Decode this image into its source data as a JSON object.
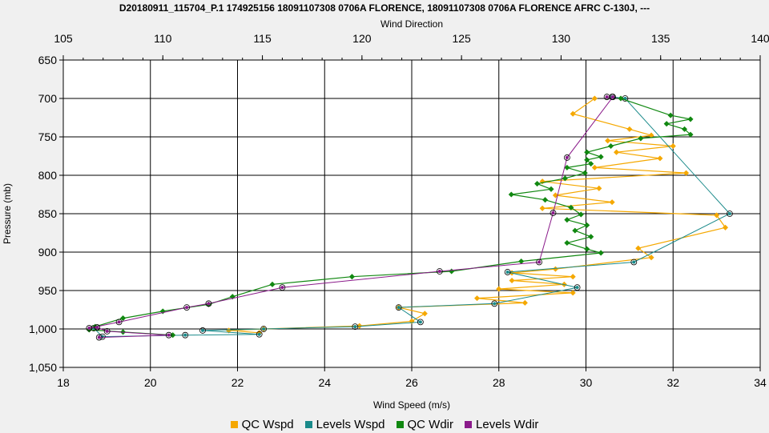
{
  "chart_data": {
    "type": "line",
    "title": "D20180911_115704_P.1 174925156 18091107308 0706A FLORENCE, 18091107308 0706A FLORENCE AFRC C-130J, ---",
    "xlabel": "Wind Speed (m/s)",
    "x2label": "Wind Direction",
    "ylabel": "Pressure (mb)",
    "xlim": [
      18,
      34
    ],
    "x2lim": [
      105,
      140
    ],
    "ylim": [
      650,
      1050
    ],
    "y_inverted": true,
    "x_ticks": [
      "18",
      "20",
      "22",
      "24",
      "26",
      "28",
      "30",
      "32",
      "34"
    ],
    "x2_ticks": [
      "105",
      "110",
      "115",
      "120",
      "125",
      "130",
      "135",
      "140"
    ],
    "y_ticks": [
      "650",
      "700",
      "750",
      "800",
      "850",
      "900",
      "950",
      "1,000",
      "1,050"
    ],
    "grid": true,
    "legend_position": "bottom",
    "series": [
      {
        "name": "QC Wspd",
        "axis": "x",
        "color": "#f5a800",
        "points": [
          [
            30.2,
            700
          ],
          [
            29.7,
            720
          ],
          [
            31.0,
            740
          ],
          [
            31.5,
            748
          ],
          [
            30.5,
            755
          ],
          [
            32.0,
            762
          ],
          [
            30.7,
            770
          ],
          [
            31.7,
            778
          ],
          [
            30.2,
            790
          ],
          [
            32.3,
            797
          ],
          [
            29.0,
            808
          ],
          [
            30.3,
            817
          ],
          [
            29.3,
            826
          ],
          [
            30.6,
            835
          ],
          [
            29.0,
            843
          ],
          [
            33.0,
            852
          ],
          [
            33.2,
            868
          ],
          [
            31.2,
            895
          ],
          [
            31.5,
            907
          ],
          [
            29.3,
            922
          ],
          [
            28.3,
            927
          ],
          [
            29.7,
            932
          ],
          [
            28.3,
            937
          ],
          [
            29.5,
            942
          ],
          [
            28.0,
            948
          ],
          [
            29.7,
            953
          ],
          [
            27.5,
            960
          ],
          [
            28.6,
            966
          ],
          [
            25.7,
            972
          ],
          [
            26.3,
            980
          ],
          [
            26.0,
            990
          ],
          [
            24.8,
            996
          ],
          [
            22.6,
            1000
          ],
          [
            21.8,
            1002
          ],
          [
            22.5,
            1005
          ]
        ]
      },
      {
        "name": "Levels Wspd",
        "axis": "x",
        "color": "#1a8a8a",
        "points": [
          [
            30.6,
            698
          ],
          [
            30.9,
            700
          ],
          [
            33.3,
            850
          ],
          [
            31.1,
            913
          ],
          [
            28.2,
            926
          ],
          [
            29.8,
            946
          ],
          [
            27.9,
            967
          ],
          [
            25.7,
            972
          ],
          [
            26.2,
            991
          ],
          [
            24.7,
            997
          ],
          [
            22.6,
            1000
          ],
          [
            21.2,
            1002
          ],
          [
            22.5,
            1007
          ],
          [
            20.8,
            1008
          ],
          [
            18.9,
            1010
          ],
          [
            18.7,
            999
          ]
        ]
      },
      {
        "name": "QC Wdir",
        "axis": "x2",
        "color": "#118811",
        "points": [
          [
            133,
            700
          ],
          [
            135.5,
            722
          ],
          [
            136.5,
            727
          ],
          [
            135.3,
            733
          ],
          [
            136.2,
            740
          ],
          [
            136.5,
            747
          ],
          [
            134.0,
            752
          ],
          [
            132.5,
            762
          ],
          [
            131.3,
            770
          ],
          [
            132.0,
            776
          ],
          [
            131.3,
            780
          ],
          [
            131.5,
            785
          ],
          [
            130.3,
            790
          ],
          [
            131.2,
            797
          ],
          [
            130.2,
            804
          ],
          [
            128.8,
            811
          ],
          [
            129.5,
            818
          ],
          [
            127.5,
            825
          ],
          [
            129.2,
            832
          ],
          [
            130.5,
            842
          ],
          [
            131.0,
            851
          ],
          [
            130.3,
            858
          ],
          [
            131.3,
            865
          ],
          [
            130.7,
            872
          ],
          [
            131.5,
            880
          ],
          [
            130.3,
            888
          ],
          [
            131.3,
            896
          ],
          [
            132.0,
            901
          ],
          [
            128.0,
            912
          ],
          [
            124.5,
            925
          ],
          [
            119.5,
            932
          ],
          [
            115.5,
            942
          ],
          [
            113.5,
            958
          ],
          [
            112.3,
            968
          ],
          [
            110.0,
            977
          ],
          [
            108.0,
            986
          ],
          [
            106.6,
            997
          ],
          [
            106.3,
            1001
          ],
          [
            108.0,
            1004
          ],
          [
            110.5,
            1008
          ]
        ]
      },
      {
        "name": "Levels Wdir",
        "axis": "x2",
        "color": "#8a1a8a",
        "points": [
          [
            132.3,
            698
          ],
          [
            132.6,
            698
          ],
          [
            130.3,
            777
          ],
          [
            129.6,
            849
          ],
          [
            128.9,
            913
          ],
          [
            123.9,
            925
          ],
          [
            116.0,
            946
          ],
          [
            112.3,
            967
          ],
          [
            111.2,
            972
          ],
          [
            107.8,
            991
          ],
          [
            106.3,
            999
          ],
          [
            106.7,
            998
          ],
          [
            107.2,
            1003
          ],
          [
            110.3,
            1008
          ],
          [
            106.8,
            1011
          ]
        ]
      }
    ]
  }
}
